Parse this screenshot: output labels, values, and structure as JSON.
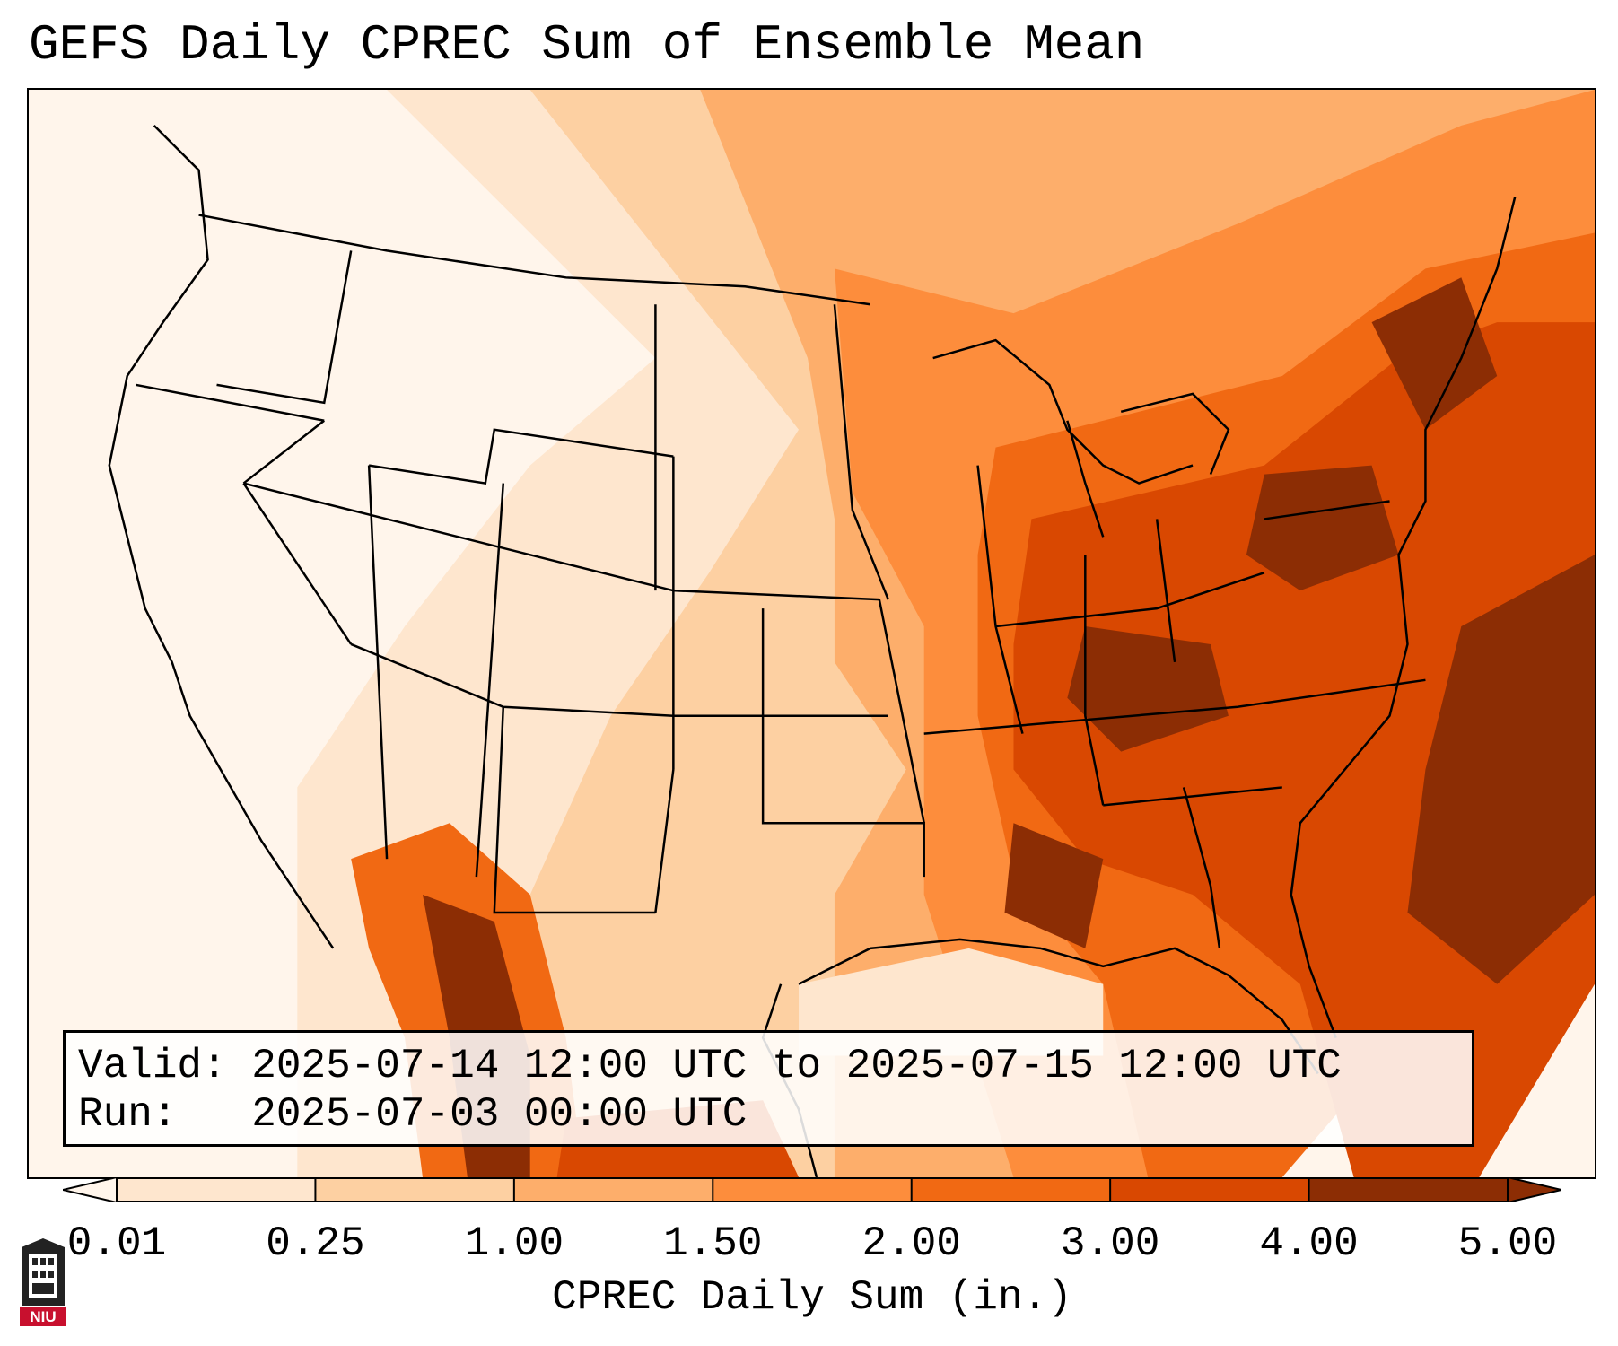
{
  "title": "GEFS Daily CPREC Sum of Ensemble Mean",
  "info": {
    "valid_label": "Valid:",
    "valid_value": "2025-07-14 12:00 UTC to 2025-07-15 12:00 UTC",
    "run_label": "Run:",
    "run_value": "2025-07-03 00:00 UTC"
  },
  "colorbar": {
    "label": "CPREC Daily Sum (in.)",
    "ticks": [
      "0.01",
      "0.25",
      "1.00",
      "1.50",
      "2.00",
      "3.00",
      "4.00",
      "5.00"
    ],
    "colors": [
      "#fff5eb",
      "#fee6ce",
      "#fdd0a2",
      "#fdae6b",
      "#fd8d3c",
      "#f16913",
      "#d94801",
      "#8c2d04"
    ],
    "extend": "both"
  },
  "logo": {
    "text": "NIU",
    "colors": {
      "red": "#c8102e",
      "dark": "#222222"
    }
  },
  "map": {
    "region": "Continental United States",
    "field_description_colors": {
      "lowest": "#fff5eb",
      "highest": "#8c2d04"
    }
  }
}
